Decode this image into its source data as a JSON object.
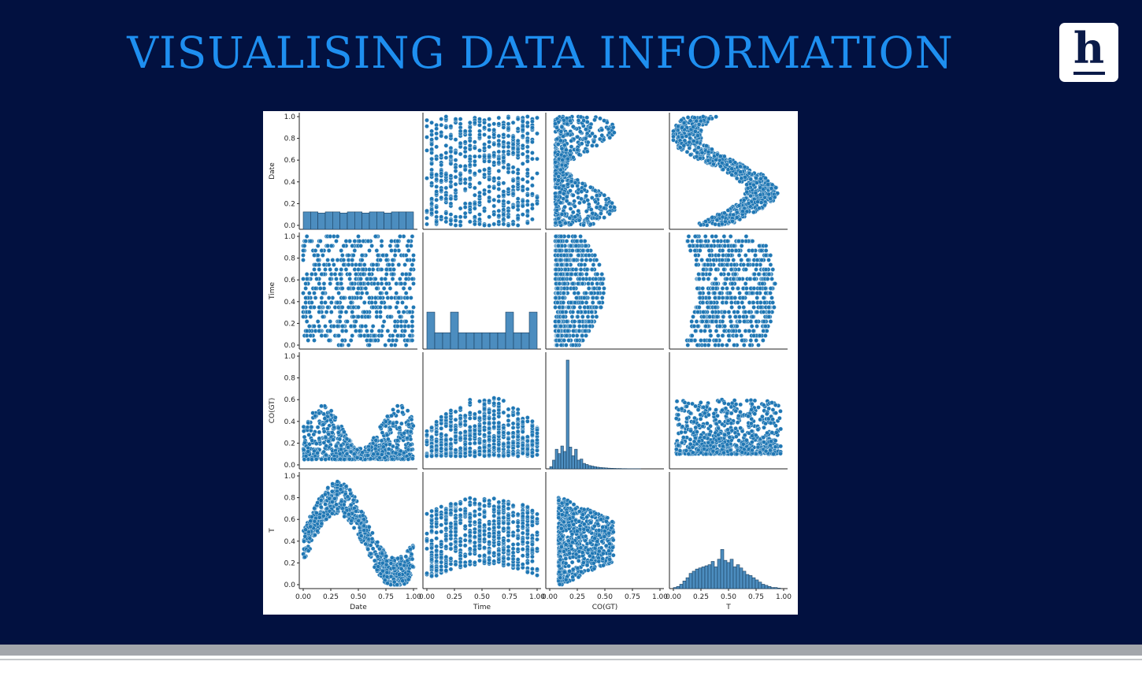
{
  "title": "VISUALISING DATA INFORMATION",
  "logo": {
    "letter": "h"
  },
  "chart_data": {
    "type": "scatter",
    "subtype": "pairplot",
    "variables": [
      "Date",
      "Time",
      "CO(GT)",
      "T"
    ],
    "axis_range": [
      0,
      1
    ],
    "x_ticks": [
      "0.00",
      "0.25",
      "0.50",
      "0.75",
      "1.00"
    ],
    "y_ticks": [
      "0.0",
      "0.2",
      "0.4",
      "0.6",
      "0.8",
      "1.0"
    ],
    "color": "#1f77b4",
    "diagonal_histograms": {
      "Date": [
        0.16,
        0.16,
        0.15,
        0.16,
        0.16,
        0.15,
        0.16,
        0.16,
        0.15,
        0.16,
        0.16,
        0.15,
        0.16,
        0.16,
        0.16
      ],
      "Time": [
        0.34,
        0.15,
        0.15,
        0.34,
        0.15,
        0.15,
        0.15,
        0.15,
        0.15,
        0.15,
        0.34,
        0.15,
        0.15,
        0.34
      ],
      "CO(GT)": [
        0.02,
        0.08,
        0.18,
        0.14,
        0.21,
        0.16,
        1.0,
        0.2,
        0.12,
        0.18,
        0.08,
        0.09,
        0.05,
        0.04,
        0.03,
        0.025,
        0.02,
        0.015,
        0.012,
        0.01,
        0.008,
        0.006,
        0.005,
        0.004,
        0.003,
        0.003,
        0.002,
        0.002,
        0.001,
        0.001,
        0.001,
        0.001,
        0.001,
        0.0,
        0.0,
        0.0,
        0.0,
        0.0,
        0.0,
        0.0
      ],
      "T": [
        0.01,
        0.02,
        0.04,
        0.07,
        0.1,
        0.14,
        0.16,
        0.18,
        0.19,
        0.2,
        0.21,
        0.22,
        0.25,
        0.2,
        0.27,
        0.36,
        0.26,
        0.24,
        0.27,
        0.2,
        0.22,
        0.19,
        0.16,
        0.13,
        0.12,
        0.1,
        0.08,
        0.06,
        0.04,
        0.03,
        0.02,
        0.01,
        0.01,
        0.005,
        0.0
      ]
    }
  }
}
